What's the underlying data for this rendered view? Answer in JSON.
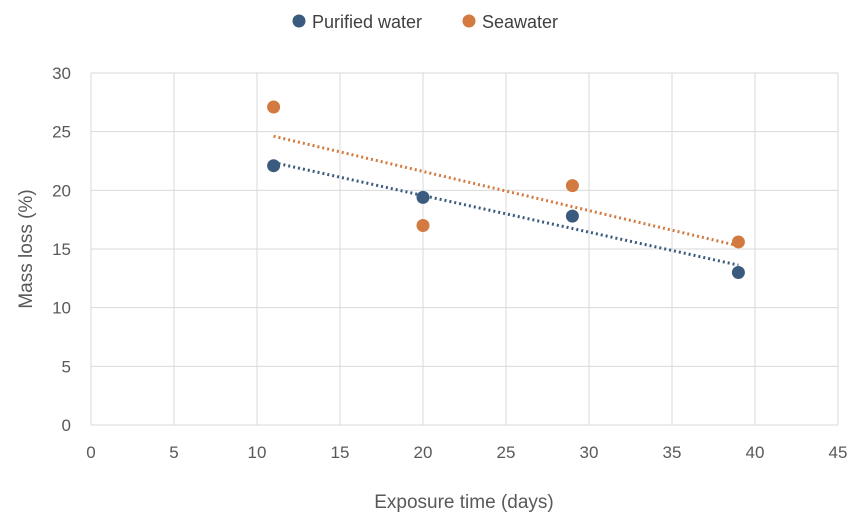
{
  "chart_data": {
    "type": "scatter",
    "title": "",
    "xlabel": "Exposure time (days)",
    "ylabel": "Mass loss (%)",
    "xlim": [
      0,
      45
    ],
    "ylim": [
      0,
      30
    ],
    "x_ticks": [
      "0",
      "5",
      "10",
      "15",
      "20",
      "25",
      "30",
      "35",
      "40",
      "45"
    ],
    "y_ticks": [
      "0",
      "5",
      "10",
      "15",
      "20",
      "25",
      "30"
    ],
    "grid": true,
    "legend_position": "top",
    "series": [
      {
        "name": "Purified water",
        "color": "#3b5b7e",
        "x": [
          11,
          20,
          29,
          39
        ],
        "y": [
          22.1,
          19.4,
          17.8,
          13.0
        ],
        "trendline": "linear, dotted"
      },
      {
        "name": "Seawater",
        "color": "#d27a3f",
        "x": [
          11,
          20,
          29,
          39
        ],
        "y": [
          27.1,
          17.0,
          20.4,
          15.6
        ],
        "trendline": "linear, dotted"
      }
    ]
  }
}
